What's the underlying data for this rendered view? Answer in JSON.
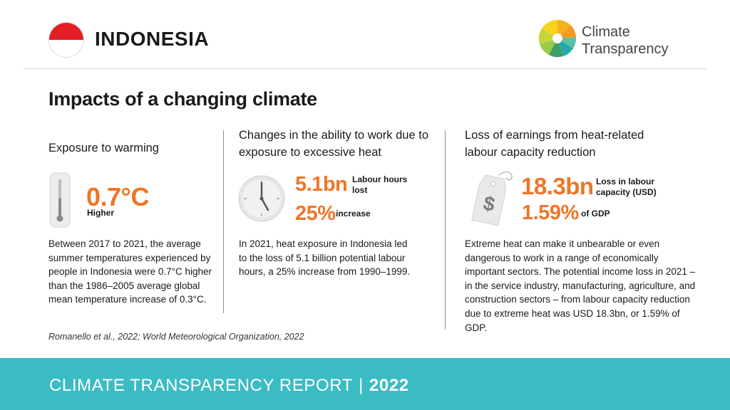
{
  "header": {
    "country": "INDONESIA",
    "logo_line1": "Climate",
    "logo_line2": "Transparency"
  },
  "section_title": "Impacts of a changing climate",
  "columns": [
    {
      "heading": "Exposure to warming",
      "stat_value": "0.7°C",
      "stat_label": "Higher",
      "text": "Between 2017 to 2021, the average summer temperatures experienced by people in Indonesia were 0.7°C higher than the 1986–2005 average global mean temperature increase of 0.3°C.",
      "icon": "thermometer-icon"
    },
    {
      "heading": "Changes in the ability to work due to exposure to excessive heat",
      "stat_value": "5.1bn",
      "stat_label": "Labour hours lost",
      "stat2_value": "25%",
      "stat2_label": "increase",
      "text": "In 2021, heat exposure in Indonesia led to the loss of 5.1 billion potential labour hours, a 25% increase from 1990–1999.",
      "icon": "clock-icon"
    },
    {
      "heading": "Loss of earnings from heat-related labour capacity reduction",
      "stat_value": "18.3bn",
      "stat_label": "Loss in labour capacity (USD)",
      "stat2_value": "1.59%",
      "stat2_label": "of GDP",
      "text": "Extreme heat can make it unbearable or even dangerous to work in a range of economically important sectors. The potential income loss in 2021 – in the service industry, manufacturing, agriculture, and construction sectors – from labour capacity reduction due to extreme heat was USD 18.3bn, or 1.59% of GDP.",
      "icon": "price-tag-icon"
    }
  ],
  "source": "Romanello et al., 2022; World Meteorological Organization, 2022",
  "footer": {
    "title": "CLIMATE TRANSPARENCY REPORT",
    "separator": "|",
    "year": "2022"
  },
  "colors": {
    "accent_orange": "#ee7626",
    "footer_teal": "#3bbcc3",
    "flag_red": "#e31e25"
  }
}
